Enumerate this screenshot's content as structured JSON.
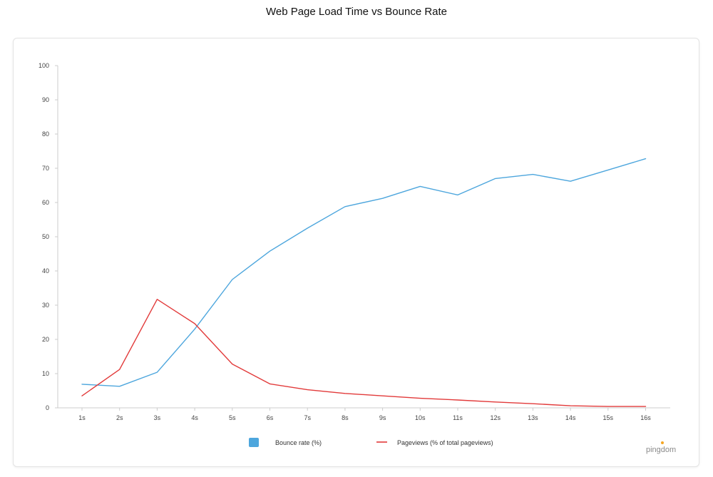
{
  "brand": {
    "name": "pingdom",
    "accent": "#f5a623"
  },
  "colors": {
    "bounce": "#4da6dd",
    "pageviews": "#e23a3a",
    "axis": "#cccccc",
    "text": "#444444"
  },
  "chart_data": {
    "type": "line",
    "title": "Web Page Load Time vs Bounce Rate",
    "xlabel": "",
    "ylabel": "",
    "categories": [
      "1s",
      "2s",
      "3s",
      "4s",
      "5s",
      "6s",
      "7s",
      "8s",
      "9s",
      "10s",
      "11s",
      "12s",
      "13s",
      "14s",
      "15s",
      "16s"
    ],
    "ylim": [
      0,
      100
    ],
    "yticks": [
      0,
      10,
      20,
      30,
      40,
      50,
      60,
      70,
      80,
      90,
      100
    ],
    "grid": false,
    "legend_position": "bottom-center",
    "series": [
      {
        "name": "Bounce rate  (%)",
        "color": "#4da6dd",
        "legend_marker": "square",
        "values": [
          6.9,
          6.3,
          10.4,
          23.0,
          37.5,
          45.8,
          52.5,
          58.8,
          61.2,
          64.7,
          62.2,
          67.0,
          68.2,
          66.2,
          69.5,
          72.8
        ]
      },
      {
        "name": "Pageviews (% of total pageviews)",
        "color": "#e23a3a",
        "legend_marker": "line",
        "values": [
          3.5,
          11.2,
          31.7,
          24.6,
          12.8,
          7.0,
          5.3,
          4.2,
          3.5,
          2.8,
          2.3,
          1.7,
          1.2,
          0.6,
          0.4,
          0.4
        ]
      }
    ]
  }
}
